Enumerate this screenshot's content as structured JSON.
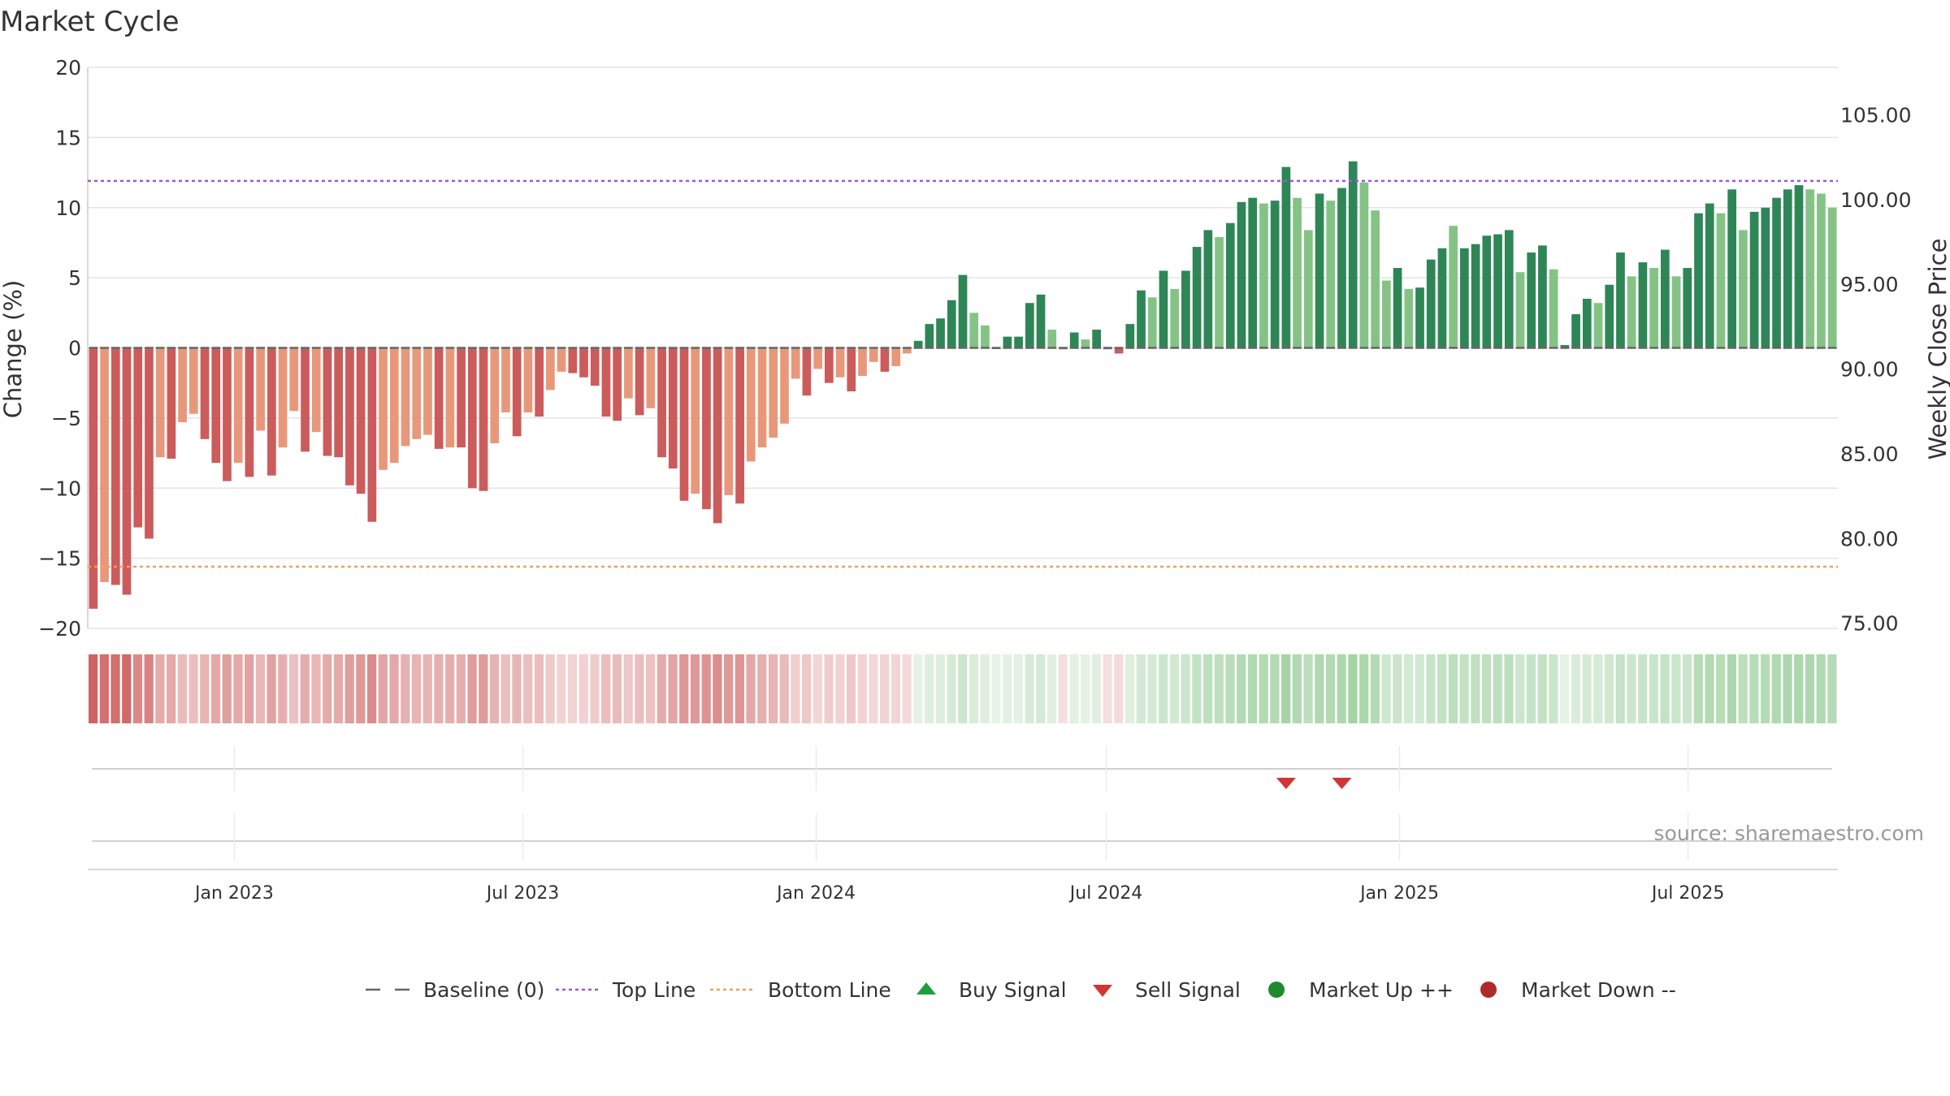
{
  "chart_data": {
    "type": "bar",
    "title": "Market Cycle",
    "ylabel": "Change (%)",
    "y2label": "Weekly Close Price",
    "ylim": [
      -20,
      20
    ],
    "y2lim": [
      74.7,
      107.8
    ],
    "yticks": [
      "20",
      "15",
      "10",
      "5",
      "0",
      "−5",
      "−10",
      "−15",
      "−20"
    ],
    "yticks_values": [
      20,
      15,
      10,
      5,
      0,
      -5,
      -10,
      -15,
      -20
    ],
    "y2ticks": [
      "105.00",
      "100.00",
      "95.00",
      "90.00",
      "85.00",
      "80.00",
      "75.00"
    ],
    "y2ticks_values": [
      105,
      100,
      95,
      90,
      85,
      80,
      75
    ],
    "x_start": "2022-10-01",
    "x_end": "2025-10-03",
    "xticks": [
      {
        "label": "Jan 2023",
        "date": "2023-01-01"
      },
      {
        "label": "Jul 2023",
        "date": "2023-07-01"
      },
      {
        "label": "Jan 2024",
        "date": "2024-01-01"
      },
      {
        "label": "Jul 2024",
        "date": "2024-07-01"
      },
      {
        "label": "Jan 2025",
        "date": "2025-01-01"
      },
      {
        "label": "Jul 2025",
        "date": "2025-07-01"
      }
    ],
    "series": [
      {
        "name": "Change (%)",
        "start_date": "2022-10-01",
        "interval": "weekly",
        "values": [
          -18.6,
          -16.7,
          -16.9,
          -17.6,
          -12.8,
          -13.6,
          -7.8,
          -7.9,
          -5.3,
          -4.7,
          -6.5,
          -8.2,
          -9.5,
          -8.2,
          -9.2,
          -5.9,
          -9.1,
          -7.1,
          -4.5,
          -7.4,
          -6.0,
          -7.7,
          -7.8,
          -9.8,
          -10.4,
          -12.4,
          -8.7,
          -8.2,
          -7.0,
          -6.5,
          -6.2,
          -7.2,
          -7.1,
          -7.1,
          -10.0,
          -10.2,
          -6.8,
          -4.6,
          -6.3,
          -4.6,
          -4.9,
          -3.0,
          -1.7,
          -1.8,
          -2.1,
          -2.7,
          -4.9,
          -5.2,
          -3.6,
          -4.8,
          -4.3,
          -7.8,
          -8.6,
          -10.9,
          -10.4,
          -11.5,
          -12.5,
          -10.5,
          -11.1,
          -8.1,
          -7.1,
          -6.4,
          -5.4,
          -2.2,
          -3.4,
          -1.5,
          -2.5,
          -2.1,
          -3.1,
          -2.0,
          -1.0,
          -1.7,
          -1.3,
          -0.4,
          0.5,
          1.7,
          2.1,
          3.4,
          5.2,
          2.5,
          1.6,
          0.0,
          0.8,
          0.8,
          3.2,
          3.8,
          1.3,
          -0.1,
          1.1,
          0.6,
          1.3,
          -0.1,
          -0.4,
          1.7,
          4.1,
          3.6,
          5.5,
          4.2,
          5.5,
          7.2,
          8.4,
          7.9,
          8.9,
          10.4,
          10.7,
          10.3,
          10.5,
          12.9,
          10.7,
          8.4,
          11.0,
          10.5,
          11.4,
          13.3,
          11.8,
          9.8,
          4.8,
          5.7,
          4.2,
          4.3,
          6.3,
          7.1,
          8.7,
          7.1,
          7.4,
          8.0,
          8.1,
          8.4,
          5.4,
          6.8,
          7.3,
          5.6,
          0.2,
          2.4,
          3.5,
          3.2,
          4.5,
          6.8,
          5.1,
          6.1,
          5.7,
          7.0,
          5.1,
          5.7,
          9.6,
          10.3,
          9.6,
          11.3,
          8.4,
          9.7,
          10.0,
          10.7,
          11.3,
          11.6,
          11.3,
          11.0,
          10.0
        ],
        "shades": [
          "strong",
          "light",
          "strong",
          "strong",
          "strong",
          "strong",
          "light",
          "strong",
          "light",
          "light",
          "strong",
          "strong",
          "strong",
          "light",
          "strong",
          "light",
          "strong",
          "light",
          "light",
          "strong",
          "light",
          "strong",
          "strong",
          "strong",
          "strong",
          "strong",
          "light",
          "light",
          "light",
          "light",
          "light",
          "strong",
          "light",
          "strong",
          "strong",
          "strong",
          "light",
          "light",
          "strong",
          "light",
          "strong",
          "light",
          "light",
          "strong",
          "strong",
          "strong",
          "strong",
          "strong",
          "light",
          "strong",
          "light",
          "strong",
          "strong",
          "strong",
          "light",
          "strong",
          "strong",
          "light",
          "strong",
          "light",
          "light",
          "light",
          "light",
          "light",
          "strong",
          "light",
          "strong",
          "light",
          "strong",
          "light",
          "light",
          "strong",
          "light",
          "light",
          "strong",
          "strong",
          "strong",
          "strong",
          "strong",
          "light",
          "light",
          "strong",
          "strong",
          "strong",
          "strong",
          "strong",
          "light",
          "strong",
          "strong",
          "light",
          "strong",
          "strong",
          "strong",
          "strong",
          "strong",
          "light",
          "strong",
          "light",
          "strong",
          "strong",
          "strong",
          "light",
          "strong",
          "strong",
          "strong",
          "light",
          "strong",
          "strong",
          "light",
          "light",
          "strong",
          "light",
          "strong",
          "strong",
          "light",
          "light",
          "light",
          "strong",
          "light",
          "strong",
          "strong",
          "strong",
          "light",
          "strong",
          "strong",
          "strong",
          "strong",
          "strong",
          "light",
          "strong",
          "strong",
          "light",
          "strong",
          "strong",
          "strong",
          "light",
          "strong",
          "strong",
          "light",
          "strong",
          "light",
          "strong",
          "light",
          "strong",
          "strong",
          "strong",
          "light",
          "strong",
          "light",
          "strong",
          "strong",
          "strong",
          "strong",
          "strong",
          "light",
          "light",
          "light"
        ]
      }
    ],
    "top_line": 11.9,
    "bottom_line": -15.6,
    "sell_signals": [
      {
        "date": "2024-10-19",
        "index": 107
      },
      {
        "date": "2024-11-23",
        "index": 112
      }
    ],
    "buy_signals": [],
    "legend": {
      "placement": "bottom",
      "items": [
        {
          "label": "Baseline (0)",
          "marker": "dash"
        },
        {
          "label": "Top Line",
          "marker": "dotted-line"
        },
        {
          "label": "Bottom Line",
          "marker": "dotted-line"
        },
        {
          "label": "Buy Signal",
          "marker": "triangle-up"
        },
        {
          "label": "Sell Signal",
          "marker": "triangle-down"
        },
        {
          "label": "Market Up ++",
          "marker": "circle"
        },
        {
          "label": "Market Down --",
          "marker": "circle"
        }
      ]
    },
    "grid": true,
    "source": "source: sharemaestro.com"
  },
  "colors": {
    "pos_strong": "#2e8656",
    "pos_light": "#84c385",
    "neg_strong": "#cc5b5b",
    "neg_light": "#e8987a",
    "top_line": "#9b59d0",
    "bottom_line": "#f0a057",
    "baseline": "#666666",
    "buy": "#1e9e3e",
    "sell": "#d33434",
    "market_up": "#1e8a2e",
    "market_down": "#b02a2a"
  }
}
